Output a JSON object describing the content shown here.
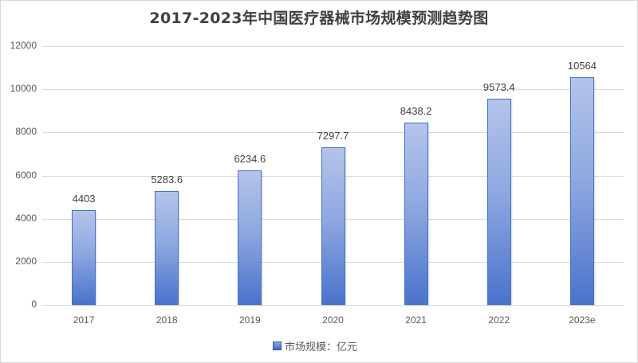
{
  "chart_data": {
    "type": "bar",
    "title": "2017-2023年中国医疗器械市场规模预测趋势图",
    "xlabel": "",
    "ylabel": "",
    "categories": [
      "2017",
      "2018",
      "2019",
      "2020",
      "2021",
      "2022",
      "2023e"
    ],
    "series": [
      {
        "name": "市场规模：亿元",
        "values": [
          4403,
          5283.6,
          6234.6,
          7297.7,
          8438.2,
          9573.4,
          10564
        ]
      }
    ],
    "data_labels": [
      "4403",
      "5283.6",
      "6234.6",
      "7297.7",
      "8438.2",
      "9573.4",
      "10564"
    ],
    "ylim": [
      0,
      12000
    ],
    "yticks": [
      "0",
      "2000",
      "4000",
      "6000",
      "8000",
      "10000",
      "12000"
    ],
    "grid": true,
    "legend_position": "bottom",
    "colors": {
      "bar_top": "#b4c4ea",
      "bar_bottom": "#4a73cc",
      "bar_border": "#4472c4"
    }
  },
  "legend": {
    "label": "市场规模：亿元"
  }
}
